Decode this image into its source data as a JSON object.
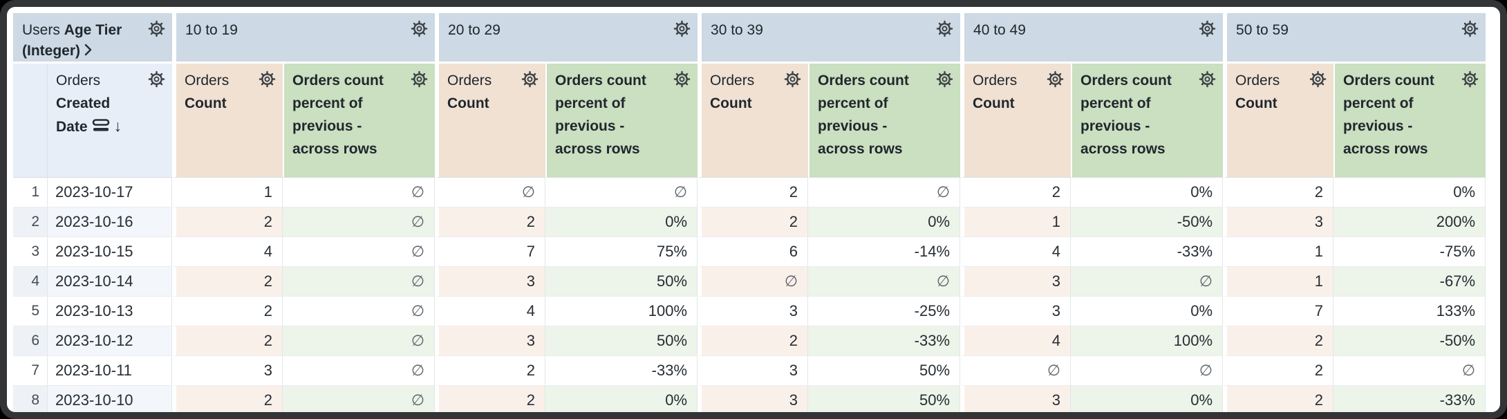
{
  "header": {
    "corner": {
      "normal": "Users",
      "bold": "Age Tier (Integer)"
    },
    "row_field": {
      "normal": "Orders",
      "bold": "Created Date"
    },
    "pivot_dimension_values": [
      "10 to 19",
      "20 to 29",
      "30 to 39",
      "40 to 49",
      "50 to 59"
    ],
    "measures": [
      {
        "normal": "Orders",
        "bold": "Count"
      },
      {
        "normal": "",
        "bold": "Orders count percent of previous - across rows"
      }
    ]
  },
  "null_symbol": "∅",
  "rows": [
    {
      "index": "1",
      "date": "2023-10-17",
      "values": [
        {
          "count": "1",
          "pct": "∅"
        },
        {
          "count": "∅",
          "pct": "∅"
        },
        {
          "count": "2",
          "pct": "∅"
        },
        {
          "count": "2",
          "pct": "0%"
        },
        {
          "count": "2",
          "pct": "0%"
        }
      ]
    },
    {
      "index": "2",
      "date": "2023-10-16",
      "values": [
        {
          "count": "2",
          "pct": "∅"
        },
        {
          "count": "2",
          "pct": "0%"
        },
        {
          "count": "2",
          "pct": "0%"
        },
        {
          "count": "1",
          "pct": "-50%"
        },
        {
          "count": "3",
          "pct": "200%"
        }
      ]
    },
    {
      "index": "3",
      "date": "2023-10-15",
      "values": [
        {
          "count": "4",
          "pct": "∅"
        },
        {
          "count": "7",
          "pct": "75%"
        },
        {
          "count": "6",
          "pct": "-14%"
        },
        {
          "count": "4",
          "pct": "-33%"
        },
        {
          "count": "1",
          "pct": "-75%"
        }
      ]
    },
    {
      "index": "4",
      "date": "2023-10-14",
      "values": [
        {
          "count": "2",
          "pct": "∅"
        },
        {
          "count": "3",
          "pct": "50%"
        },
        {
          "count": "∅",
          "pct": "∅"
        },
        {
          "count": "3",
          "pct": "∅"
        },
        {
          "count": "1",
          "pct": "-67%"
        }
      ]
    },
    {
      "index": "5",
      "date": "2023-10-13",
      "values": [
        {
          "count": "2",
          "pct": "∅"
        },
        {
          "count": "4",
          "pct": "100%"
        },
        {
          "count": "3",
          "pct": "-25%"
        },
        {
          "count": "3",
          "pct": "0%"
        },
        {
          "count": "7",
          "pct": "133%"
        }
      ]
    },
    {
      "index": "6",
      "date": "2023-10-12",
      "values": [
        {
          "count": "2",
          "pct": "∅"
        },
        {
          "count": "3",
          "pct": "50%"
        },
        {
          "count": "2",
          "pct": "-33%"
        },
        {
          "count": "4",
          "pct": "100%"
        },
        {
          "count": "2",
          "pct": "-50%"
        }
      ]
    },
    {
      "index": "7",
      "date": "2023-10-11",
      "values": [
        {
          "count": "3",
          "pct": "∅"
        },
        {
          "count": "2",
          "pct": "-33%"
        },
        {
          "count": "3",
          "pct": "50%"
        },
        {
          "count": "∅",
          "pct": "∅"
        },
        {
          "count": "2",
          "pct": "∅"
        }
      ]
    },
    {
      "index": "8",
      "date": "2023-10-10",
      "values": [
        {
          "count": "2",
          "pct": "∅"
        },
        {
          "count": "2",
          "pct": "0%"
        },
        {
          "count": "3",
          "pct": "50%"
        },
        {
          "count": "3",
          "pct": "0%"
        },
        {
          "count": "2",
          "pct": "-33%"
        }
      ]
    }
  ],
  "colors": {
    "pivot_header_bg": "#cdd9e4",
    "dimension_header_bg": "#e8eef7",
    "count_header_bg": "#f0e1d3",
    "percent_header_bg": "#cbdfc1",
    "even_row_date_bg": "#f3f6fa",
    "even_row_count_bg": "#faf0ea",
    "even_row_percent_bg": "#edf4ea",
    "text": "#262d33",
    "frame_border": "#323436"
  }
}
